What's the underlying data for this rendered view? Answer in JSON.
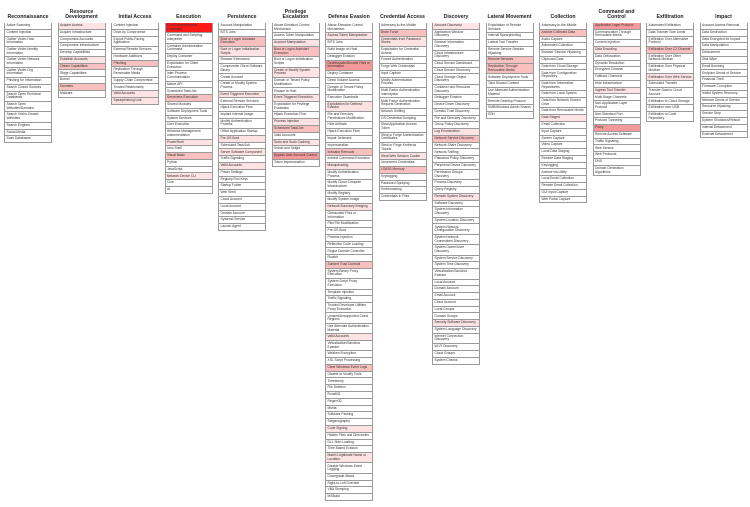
{
  "tactics": [
    {
      "name": "Reconnaissance",
      "techniques": [
        "Active Scanning",
        "Content Injection",
        "Gather Victim Host Information",
        "Gather Victim Identity Information",
        "Gather Victim Network Information",
        "Gather Victim Org Information",
        "Phishing for Information",
        "Search Closed Sources",
        "Search Open Technical Databases",
        "Search Open Websites/Domains",
        "Search Victim-Owned Websites",
        "Search Engines",
        "Social Media",
        "Scan Databases"
      ],
      "colors": [
        "#ffffff",
        "#ffffff",
        "#ffffff",
        "#ffffff",
        "#ffffff",
        "#ffffff",
        "#ffffff",
        "#ffffff",
        "#ffffff",
        "#ffffff",
        "#ffffff",
        "#ffffff",
        "#ffffff",
        "#ffffff"
      ]
    },
    {
      "name": "Resource Development",
      "techniques": [
        "Acquire Access",
        "Acquire Infrastructure",
        "Compromise Accounts",
        "Compromise Infrastructure",
        "Develop Capabilities",
        "Establish Accounts",
        "Obtain Capabilities",
        "Stage Capabilities",
        "Botnet",
        "Domains",
        "Malware"
      ],
      "colors": [
        "#fde3e3",
        "#ffffff",
        "#ffffff",
        "#ffffff",
        "#ffffff",
        "#fde3e3",
        "#f9c0c0",
        "#ffffff",
        "#ffffff",
        "#f9c0c0",
        "#ffffff"
      ]
    },
    {
      "name": "Initial Access",
      "techniques": [
        "Content Injection",
        "Drive-by Compromise",
        "Exploit Public-Facing Application",
        "External Remote Services",
        "Hardware Additions",
        "Phishing",
        "Replication Through Removable Media",
        "Supply Chain Compromise",
        "Trusted Relationship",
        "Valid Accounts",
        "Spearphishing Link"
      ],
      "colors": [
        "#ffffff",
        "#ffffff",
        "#ffffff",
        "#ffffff",
        "#ffffff",
        "#f9c0c0",
        "#ffffff",
        "#ffffff",
        "#ffffff",
        "#fde3e3",
        "#fde3e3"
      ]
    },
    {
      "name": "Execution",
      "techniques": [
        "Cloud Administration Command",
        "Command and Scripting Interpreter",
        "Container Administration Command",
        "Deploy Container",
        "Exploitation for Client Execution",
        "Inter-Process Communication",
        "Native API",
        "Scheduled Task/Job",
        "Serverless Execution",
        "Shared Modules",
        "Software Deployment Tools",
        "System Services",
        "User Execution",
        "Windows Management Instrumentation",
        "PowerShell",
        "Unix Shell",
        "Visual Basic",
        "Python",
        "JavaScript",
        "Network Device CLI",
        "Cron",
        "At"
      ],
      "colors": [
        "#ff1a1a",
        "#ffffff",
        "#ffffff",
        "#ffffff",
        "#ffffff",
        "#ffffff",
        "#ffffff",
        "#ffffff",
        "#f9c0c0",
        "#ffffff",
        "#ffffff",
        "#ffffff",
        "#ffffff",
        "#ffffff",
        "#fde3e3",
        "#ffffff",
        "#f9c0c0",
        "#ffffff",
        "#ffffff",
        "#fde3e3",
        "#ffffff",
        "#ffffff"
      ]
    },
    {
      "name": "Persistence",
      "techniques": [
        "Account Manipulation",
        "BITS Jobs",
        "Boot or Logon Autostart Execution",
        "Boot or Logon Initialization Scripts",
        "Browser Extensions",
        "Compromise Client Software Binary",
        "Create Account",
        "Create or Modify System Process",
        "Event Triggered Execution",
        "External Remote Services",
        "Hijack Execution Flow",
        "Implant Internal Image",
        "Modify Authentication Process",
        "Office Application Startup",
        "Pre-OS Boot",
        "Scheduled Task/Job",
        "Server Software Component",
        "Traffic Signaling",
        "Valid Accounts",
        "Power Settings",
        "Registry Run Keys",
        "Startup Folder",
        "Web Shell",
        "Cloud Account",
        "Local Account",
        "Domain Account",
        "Systemd Service",
        "Launch Agent"
      ],
      "colors": [
        "#ffffff",
        "#ffffff",
        "#f9c0c0",
        "#fde3e3",
        "#ffffff",
        "#ffffff",
        "#ffffff",
        "#ffffff",
        "#fde3e3",
        "#ffffff",
        "#ffffff",
        "#ffffff",
        "#ffffff",
        "#ffffff",
        "#fde3e3",
        "#ffffff",
        "#fde3e3",
        "#ffffff",
        "#fde3e3",
        "#ffffff",
        "#ffffff",
        "#ffffff",
        "#ffffff",
        "#ffffff",
        "#ffffff",
        "#ffffff",
        "#ffffff",
        "#ffffff"
      ]
    },
    {
      "name": "Privilege Escalation",
      "techniques": [
        "Abuse Elevation Control Mechanism",
        "Access Token Manipulation",
        "Account Manipulation",
        "Boot or Logon Autostart Execution",
        "Boot or Logon Initialization Scripts",
        "Create or Modify System Process",
        "Domain or Tenant Policy Modification",
        "Escape to Host",
        "Event Triggered Execution",
        "Exploitation for Privilege Escalation",
        "Hijack Execution Flow",
        "Process Injection",
        "Scheduled Task/Job",
        "Valid Accounts",
        "Sudo and Sudo Caching",
        "Setuid and Setgid",
        "Bypass User Account Control",
        "Token Impersonation"
      ],
      "colors": [
        "#ffffff",
        "#ffffff",
        "#fde3e3",
        "#f9c0c0",
        "#ffffff",
        "#fde3e3",
        "#ffffff",
        "#ffffff",
        "#fde3e3",
        "#ffffff",
        "#ffffff",
        "#fde3e3",
        "#f9c0c0",
        "#ffffff",
        "#fde3e3",
        "#ffffff",
        "#f49a9a",
        "#ffffff"
      ]
    },
    {
      "name": "Defense Evasion",
      "techniques": [
        "Abuse Elevation Control Mechanism",
        "Access Token Manipulation",
        "BITS Jobs",
        "Build Image on Host",
        "Debugger Evasion",
        "Deobfuscate/Decode Files or Information",
        "Deploy Container",
        "Direct Volume Access",
        "Domain or Tenant Policy Modification",
        "Execution Guardrails",
        "Exploitation for Defense Evasion",
        "File and Directory Permissions Modification",
        "Hide Artifacts",
        "Hijack Execution Flow",
        "Impair Defenses",
        "Impersonation",
        "Indicator Removal",
        "Indirect Command Execution",
        "Masquerading",
        "Modify Authentication Process",
        "Modify Cloud Compute Infrastructure",
        "Modify Registry",
        "Modify System Image",
        "Network Boundary Bridging",
        "Obfuscated Files or Information",
        "Plist File Modification",
        "Pre-OS Boot",
        "Process Injection",
        "Reflective Code Loading",
        "Rogue Domain Controller",
        "Rootkit",
        "Subvert Trust Controls",
        "System Binary Proxy Execution",
        "System Script Proxy Execution",
        "Template Injection",
        "Traffic Signaling",
        "Trusted Developer Utilities Proxy Execution",
        "Unused/Unsupported Cloud Regions",
        "Use Alternate Authentication Material",
        "Valid Accounts",
        "Virtualization/Sandbox Evasion",
        "Weaken Encryption",
        "XSL Script Processing",
        "Clear Windows Event Logs",
        "Disable or Modify Tools",
        "Timestomp",
        "File Deletion",
        "Rundll32",
        "Regsvr32",
        "Mshta",
        "Software Packing",
        "Steganography",
        "Code Signing",
        "Hidden Files and Directories",
        "DLL Side-Loading",
        "Time Based Evasion",
        "Match Legitimate Name or Location",
        "Disable Windows Event Logging",
        "Downgrade Attack",
        "Right-to-Left Override",
        "VBA Stomping",
        "MSBuild"
      ],
      "colors": [
        "#ffffff",
        "#fde3e3",
        "#ffffff",
        "#ffffff",
        "#ffffff",
        "#f49a9a",
        "#ffffff",
        "#ffffff",
        "#ffffff",
        "#ffffff",
        "#fde3e3",
        "#ffffff",
        "#ffffff",
        "#ffffff",
        "#ffffff",
        "#ffffff",
        "#f9c0c0",
        "#ffffff",
        "#fde3e3",
        "#ffffff",
        "#ffffff",
        "#ffffff",
        "#ffffff",
        "#fde3e3",
        "#ffffff",
        "#ffffff",
        "#ffffff",
        "#ffffff",
        "#ffffff",
        "#ffffff",
        "#ffffff",
        "#f9c0c0",
        "#ffffff",
        "#ffffff",
        "#ffffff",
        "#ffffff",
        "#ffffff",
        "#ffffff",
        "#ffffff",
        "#fde3e3",
        "#ffffff",
        "#ffffff",
        "#ffffff",
        "#f9c0c0",
        "#ffffff",
        "#ffffff",
        "#ffffff",
        "#ffffff",
        "#ffffff",
        "#ffffff",
        "#ffffff",
        "#ffffff",
        "#fde3e3",
        "#ffffff",
        "#ffffff",
        "#ffffff",
        "#fde3e3",
        "#ffffff",
        "#ffffff",
        "#ffffff",
        "#ffffff",
        "#ffffff"
      ]
    },
    {
      "name": "Credential Access",
      "techniques": [
        "Adversary-in-the-Middle",
        "Brute Force",
        "Credentials from Password Stores",
        "Exploitation for Credential Access",
        "Forced Authentication",
        "Forge Web Credentials",
        "Input Capture",
        "Modify Authentication Process",
        "Multi-Factor Authentication Interception",
        "Multi-Factor Authentication Request Generation",
        "Network Sniffing",
        "OS Credential Dumping",
        "Steal Application Access Token",
        "Steal or Forge Authentication Certificates",
        "Steal or Forge Kerberos Tickets",
        "Steal Web Session Cookie",
        "Unsecured Credentials",
        "LSASS Memory",
        "Keylogging",
        "Password Spraying",
        "Kerberoasting",
        "Credentials In Files"
      ],
      "colors": [
        "#ffffff",
        "#f9c0c0",
        "#fde3e3",
        "#ffffff",
        "#ffffff",
        "#ffffff",
        "#ffffff",
        "#ffffff",
        "#ffffff",
        "#ffffff",
        "#ffffff",
        "#ffffff",
        "#ffffff",
        "#ffffff",
        "#ffffff",
        "#fde3e3",
        "#ffffff",
        "#f9c0c0",
        "#ffffff",
        "#ffffff",
        "#ffffff",
        "#ffffff"
      ]
    },
    {
      "name": "Discovery",
      "techniques": [
        "Account Discovery",
        "Application Window Discovery",
        "Browser Information Discovery",
        "Cloud Infrastructure Discovery",
        "Cloud Service Dashboard",
        "Cloud Service Discovery",
        "Cloud Storage Object Discovery",
        "Container and Resource Discovery",
        "Debugger Evasion",
        "Device Driver Discovery",
        "Domain Trust Discovery",
        "File and Directory Discovery",
        "Group Policy Discovery",
        "Log Enumeration",
        "Network Service Discovery",
        "Network Share Discovery",
        "Network Sniffing",
        "Password Policy Discovery",
        "Peripheral Device Discovery",
        "Permission Groups Discovery",
        "Process Discovery",
        "Query Registry",
        "Remote System Discovery",
        "Software Discovery",
        "System Information Discovery",
        "System Location Discovery",
        "System Network Configuration Discovery",
        "System Network Connections Discovery",
        "System Owner/User Discovery",
        "System Service Discovery",
        "System Time Discovery",
        "Virtualization/Sandbox Evasion",
        "Local Account",
        "Domain Account",
        "Email Account",
        "Cloud Account",
        "Local Groups",
        "Domain Groups",
        "Security Software Discovery",
        "System Language Discovery",
        "Internet Connection Discovery",
        "Wi-Fi Discovery",
        "Cloud Groups",
        "System Checks"
      ],
      "colors": [
        "#fde3e3",
        "#ffffff",
        "#ffffff",
        "#ffffff",
        "#ffffff",
        "#ffffff",
        "#ffffff",
        "#ffffff",
        "#ffffff",
        "#ffffff",
        "#ffffff",
        "#ffffff",
        "#ffffff",
        "#fde3e3",
        "#f9c0c0",
        "#ffffff",
        "#ffffff",
        "#ffffff",
        "#ffffff",
        "#ffffff",
        "#ffffff",
        "#ffffff",
        "#fde3e3",
        "#ffffff",
        "#ffffff",
        "#ffffff",
        "#ffffff",
        "#ffffff",
        "#ffffff",
        "#ffffff",
        "#ffffff",
        "#ffffff",
        "#ffffff",
        "#ffffff",
        "#ffffff",
        "#ffffff",
        "#ffffff",
        "#ffffff",
        "#fde3e3",
        "#ffffff",
        "#ffffff",
        "#ffffff",
        "#ffffff",
        "#ffffff"
      ]
    },
    {
      "name": "Lateral Movement",
      "techniques": [
        "Exploitation of Remote Services",
        "Internal Spearphishing",
        "Lateral Tool Transfer",
        "Remote Service Session Hijacking",
        "Remote Services",
        "Replication Through Removable Media",
        "Software Deployment Tools",
        "Taint Shared Content",
        "Use Alternate Authentication Material",
        "Remote Desktop Protocol",
        "SMB/Windows Admin Shares",
        "SSH"
      ],
      "colors": [
        "#ffffff",
        "#ffffff",
        "#ffffff",
        "#ffffff",
        "#f9c0c0",
        "#f9c0c0",
        "#ffffff",
        "#ffffff",
        "#ffffff",
        "#ffffff",
        "#ffffff",
        "#ffffff"
      ]
    },
    {
      "name": "Collection",
      "techniques": [
        "Adversary-in-the-Middle",
        "Archive Collected Data",
        "Audio Capture",
        "Automated Collection",
        "Browser Session Hijacking",
        "Clipboard Data",
        "Data from Cloud Storage",
        "Data from Configuration Repository",
        "Data from Information Repositories",
        "Data from Local System",
        "Data from Network Shared Drive",
        "Data from Removable Media",
        "Data Staged",
        "Email Collection",
        "Input Capture",
        "Screen Capture",
        "Video Capture",
        "Local Data Staging",
        "Remote Data Staging",
        "Keylogging",
        "Archive via Utility",
        "Local Email Collection",
        "Remote Email Collection",
        "GUI Input Capture",
        "Web Portal Capture"
      ],
      "colors": [
        "#ffffff",
        "#f9c0c0",
        "#ffffff",
        "#ffffff",
        "#ffffff",
        "#ffffff",
        "#ffffff",
        "#ffffff",
        "#ffffff",
        "#ffffff",
        "#ffffff",
        "#ffffff",
        "#fde3e3",
        "#ffffff",
        "#ffffff",
        "#ffffff",
        "#ffffff",
        "#ffffff",
        "#ffffff",
        "#ffffff",
        "#ffffff",
        "#ffffff",
        "#ffffff",
        "#ffffff",
        "#ffffff"
      ]
    },
    {
      "name": "Command and Control",
      "techniques": [
        "Application Layer Protocol",
        "Communication Through Removable Media",
        "Content Injection",
        "Data Encoding",
        "Data Obfuscation",
        "Dynamic Resolution",
        "Encrypted Channel",
        "Fallback Channels",
        "Hide Infrastructure",
        "Ingress Tool Transfer",
        "Multi-Stage Channels",
        "Non-Application Layer Protocol",
        "Non-Standard Port",
        "Protocol Tunneling",
        "Proxy",
        "Remote Access Software",
        "Traffic Signaling",
        "Web Service",
        "Web Protocols",
        "DNS",
        "Domain Generation Algorithms"
      ],
      "colors": [
        "#f49a9a",
        "#ffffff",
        "#ffffff",
        "#fde3e3",
        "#ffffff",
        "#ffffff",
        "#ffffff",
        "#ffffff",
        "#ffffff",
        "#fde3e3",
        "#ffffff",
        "#ffffff",
        "#ffffff",
        "#ffffff",
        "#f49a9a",
        "#ffffff",
        "#ffffff",
        "#ffffff",
        "#ffffff",
        "#ffffff",
        "#ffffff"
      ]
    },
    {
      "name": "Exfiltration",
      "techniques": [
        "Automated Exfiltration",
        "Data Transfer Size Limits",
        "Exfiltration Over Alternative Protocol",
        "Exfiltration Over C2 Channel",
        "Exfiltration Over Other Network Medium",
        "Exfiltration Over Physical Medium",
        "Exfiltration Over Web Service",
        "Scheduled Transfer",
        "Transfer Data to Cloud Account",
        "Exfiltration to Cloud Storage",
        "Exfiltration over USB",
        "Exfiltration to Code Repository"
      ],
      "colors": [
        "#ffffff",
        "#ffffff",
        "#ffffff",
        "#f9c0c0",
        "#ffffff",
        "#ffffff",
        "#fde3e3",
        "#ffffff",
        "#ffffff",
        "#ffffff",
        "#ffffff",
        "#ffffff"
      ]
    },
    {
      "name": "Impact",
      "techniques": [
        "Account Access Removal",
        "Data Destruction",
        "Data Encrypted for Impact",
        "Data Manipulation",
        "Defacement",
        "Disk Wipe",
        "Email Bombing",
        "Endpoint Denial of Service",
        "Financial Theft",
        "Firmware Corruption",
        "Inhibit System Recovery",
        "Network Denial of Service",
        "Resource Hijacking",
        "Service Stop",
        "System Shutdown/Reboot",
        "Internal Defacement",
        "External Defacement"
      ],
      "colors": [
        "#ffffff",
        "#ffffff",
        "#ffffff",
        "#ffffff",
        "#ffffff",
        "#ffffff",
        "#ffffff",
        "#ffffff",
        "#ffffff",
        "#ffffff",
        "#ffffff",
        "#ffffff",
        "#ffffff",
        "#ffffff",
        "#ffffff",
        "#ffffff",
        "#ffffff"
      ]
    }
  ]
}
